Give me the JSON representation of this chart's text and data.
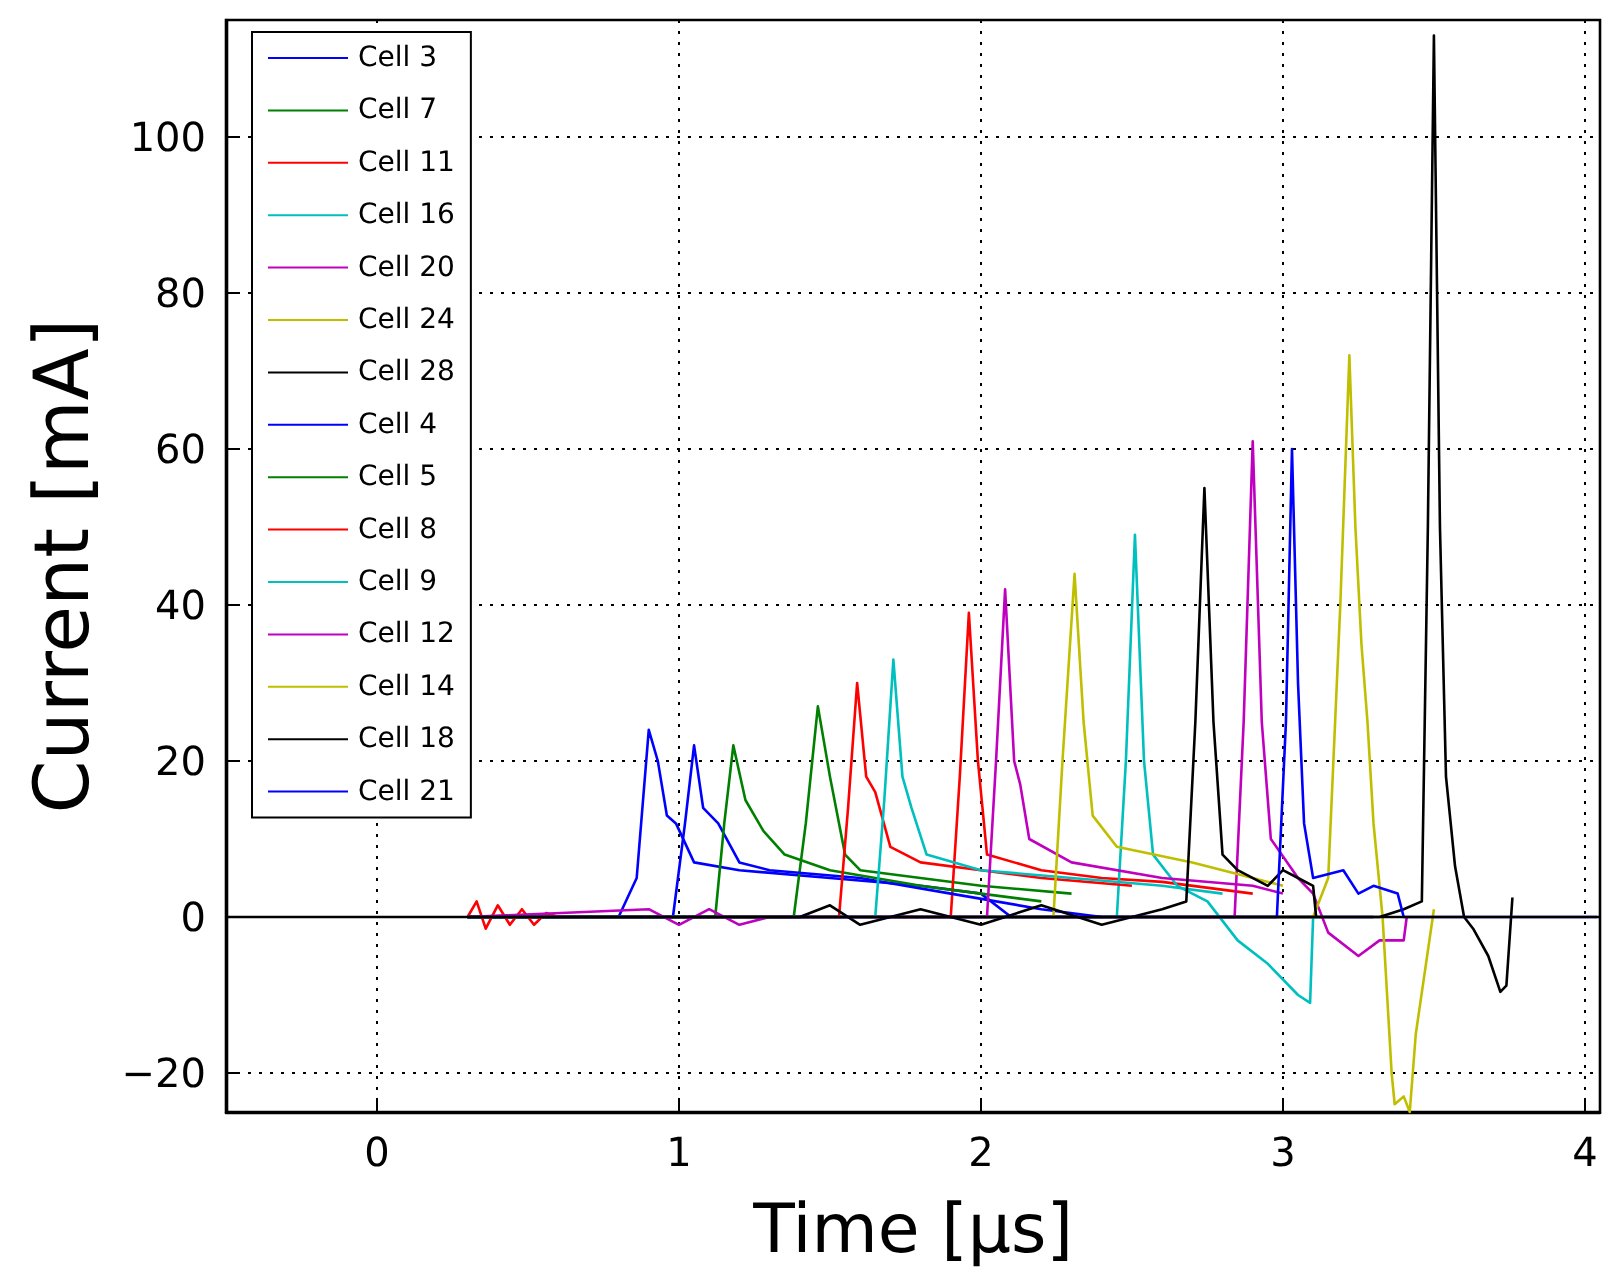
{
  "chart_data": {
    "type": "line",
    "xlabel": "Time [μs]",
    "ylabel": "Current [mA]",
    "xlim": [
      -0.5,
      4.05
    ],
    "xticks": [
      0,
      1,
      2,
      3,
      4
    ],
    "ylim": [
      -25,
      115
    ],
    "yticks": [
      -20,
      0,
      20,
      40,
      60,
      80,
      100
    ],
    "grid": true,
    "legend": "top left",
    "ref_lines": [
      {
        "axis": "y",
        "value": 0,
        "color": "#000000"
      }
    ],
    "marker": "none",
    "line_style": "solid",
    "series": [
      {
        "name": "Cell 3",
        "color": "#0000ff",
        "x": [
          0.3,
          0.8,
          0.86,
          0.9,
          0.93,
          0.96,
          0.99,
          1.05,
          1.2,
          1.5,
          1.8,
          2.0,
          2.1,
          3.3
        ],
        "values": [
          0,
          0,
          5,
          24,
          20,
          13,
          12,
          7,
          6,
          5,
          4,
          3,
          0,
          0
        ]
      },
      {
        "name": "Cell 7",
        "color": "#008000",
        "x": [
          0.3,
          1.38,
          1.42,
          1.46,
          1.5,
          1.55,
          1.6,
          1.8,
          2.0,
          2.3
        ],
        "values": [
          0,
          0,
          12,
          27,
          18,
          8,
          6,
          5,
          4,
          3
        ]
      },
      {
        "name": "Cell 11",
        "color": "#ff0000",
        "x": [
          0.3,
          1.9,
          1.93,
          1.96,
          1.99,
          2.02,
          2.2,
          2.4,
          2.6,
          2.9
        ],
        "values": [
          0,
          0,
          18,
          39,
          20,
          8,
          6,
          5,
          4.5,
          3
        ]
      },
      {
        "name": "Cell 16",
        "color": "#00bfbf",
        "x": [
          0.3,
          2.45,
          2.48,
          2.51,
          2.54,
          2.57,
          2.65,
          2.75,
          2.85,
          2.95,
          3.05,
          3.09,
          3.1
        ],
        "values": [
          0,
          0,
          20,
          49,
          20,
          8,
          4,
          2,
          -3,
          -6,
          -10,
          -11,
          0
        ]
      },
      {
        "name": "Cell 20",
        "color": "#bf00bf",
        "x": [
          0.3,
          2.84,
          2.87,
          2.9,
          2.93,
          2.96,
          3.05,
          3.1,
          3.15,
          3.25,
          3.32,
          3.4,
          3.41
        ],
        "values": [
          0,
          0,
          25,
          61,
          25,
          10,
          5,
          3,
          -2,
          -5,
          -3,
          -3,
          0
        ]
      },
      {
        "name": "Cell 24",
        "color": "#bfbf00",
        "x": [
          0.3,
          3.1,
          3.15,
          3.19,
          3.22,
          3.24,
          3.26,
          3.28,
          3.3,
          3.33,
          3.36,
          3.37,
          3.4,
          3.42,
          3.44,
          3.47,
          3.5
        ],
        "values": [
          0,
          0,
          5,
          40,
          72,
          50,
          35,
          25,
          12,
          0,
          -20,
          -24,
          -23,
          -25,
          -15,
          -7,
          1
        ]
      },
      {
        "name": "Cell 28",
        "color": "#000000",
        "x": [
          0.3,
          3.32,
          3.4,
          3.46,
          3.48,
          3.5,
          3.52,
          3.54,
          3.57,
          3.6,
          3.63,
          3.68,
          3.72,
          3.74,
          3.76
        ],
        "values": [
          0,
          0,
          1,
          2,
          50,
          113,
          50,
          18,
          6.5,
          0,
          -1.5,
          -5,
          -9.6,
          -8.8,
          2.5
        ]
      },
      {
        "name": "Cell 4",
        "color": "#0000ff",
        "x": [
          0.3,
          0.98,
          1.02,
          1.05,
          1.08,
          1.13,
          1.2,
          1.3,
          1.6,
          1.9,
          2.2,
          2.4
        ],
        "values": [
          0,
          0,
          12,
          22,
          14,
          12,
          7,
          6,
          5,
          3,
          1,
          0
        ]
      },
      {
        "name": "Cell 5",
        "color": "#008000",
        "x": [
          0.3,
          1.12,
          1.15,
          1.18,
          1.22,
          1.28,
          1.35,
          1.5,
          1.8,
          2.0,
          2.2
        ],
        "values": [
          0,
          0,
          12,
          22,
          15,
          11,
          8,
          6,
          4,
          3,
          2
        ]
      },
      {
        "name": "Cell 8",
        "color": "#ff0000",
        "x": [
          0.3,
          0.33,
          0.36,
          0.4,
          0.44,
          0.48,
          0.52,
          0.56,
          0.6,
          1.53,
          1.56,
          1.59,
          1.62,
          1.65,
          1.7,
          1.8,
          2.0,
          2.2,
          2.5
        ],
        "values": [
          0,
          2,
          -1.5,
          1.5,
          -1,
          1,
          -1,
          0.5,
          0,
          0,
          14,
          30,
          18,
          16,
          9,
          7,
          6,
          5,
          4
        ]
      },
      {
        "name": "Cell 9",
        "color": "#00bfbf",
        "x": [
          0.3,
          1.65,
          1.68,
          1.71,
          1.74,
          1.77,
          1.82,
          2.0,
          2.3,
          2.6,
          2.8
        ],
        "values": [
          0,
          0,
          15,
          33,
          18,
          14,
          8,
          6,
          5,
          4,
          3
        ]
      },
      {
        "name": "Cell 12",
        "color": "#bf00bf",
        "x": [
          0.3,
          0.9,
          1.0,
          1.1,
          1.2,
          1.3,
          2.02,
          2.05,
          2.08,
          2.11,
          2.13,
          2.16,
          2.3,
          2.6,
          2.9,
          3.0
        ],
        "values": [
          0,
          1,
          -1,
          1,
          -1,
          0,
          0,
          20,
          42,
          20,
          17,
          10,
          7,
          5,
          4,
          3
        ]
      },
      {
        "name": "Cell 14",
        "color": "#bfbf00",
        "x": [
          0.3,
          2.24,
          2.27,
          2.31,
          2.34,
          2.37,
          2.45,
          2.7,
          2.9,
          3.0
        ],
        "values": [
          0,
          0,
          20,
          44,
          25,
          13,
          9,
          7,
          5,
          4
        ]
      },
      {
        "name": "Cell 18",
        "color": "#000000",
        "x": [
          0.3,
          1.4,
          1.5,
          1.6,
          1.8,
          2.0,
          2.2,
          2.4,
          2.6,
          2.68,
          2.71,
          2.74,
          2.77,
          2.8,
          2.85,
          2.95,
          3.0,
          3.05,
          3.1,
          3.11
        ],
        "values": [
          0,
          0,
          1.5,
          -1,
          1,
          -1,
          1.5,
          -1,
          1,
          2,
          25,
          55,
          25,
          8,
          6,
          4,
          6,
          5,
          4,
          0
        ]
      },
      {
        "name": "Cell 21",
        "color": "#0000ff",
        "x": [
          0.3,
          2.98,
          3.01,
          3.03,
          3.05,
          3.07,
          3.1,
          3.2,
          3.25,
          3.3,
          3.38,
          3.4,
          4.04
        ],
        "values": [
          0,
          0,
          25,
          60,
          30,
          12,
          5,
          6,
          3,
          4,
          3,
          0,
          0
        ]
      }
    ]
  }
}
